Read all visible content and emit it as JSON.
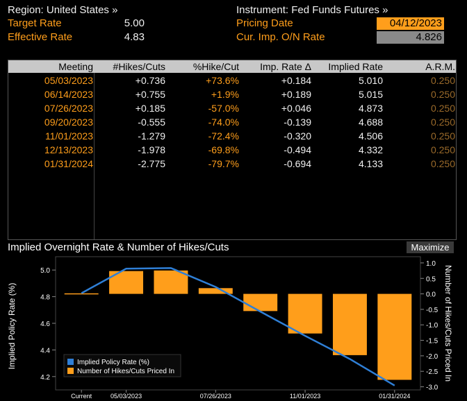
{
  "header": {
    "region_label": "Region: United States »",
    "instrument_label": "Instrument: Fed Funds Futures »",
    "target_rate_label": "Target Rate",
    "target_rate_value": "5.00",
    "effective_rate_label": "Effective Rate",
    "effective_rate_value": "4.83",
    "pricing_date_label": "Pricing Date",
    "pricing_date_value": "04/12/2023",
    "cur_imp_label": "Cur. Imp. O/N Rate",
    "cur_imp_value": "4.826"
  },
  "table": {
    "columns": [
      "Meeting",
      "#Hikes/Cuts",
      "%Hike/Cut",
      "Imp. Rate Δ",
      "Implied Rate",
      "A.R.M."
    ],
    "rows": [
      {
        "meeting": "05/03/2023",
        "hikes": "+0.736",
        "pct": "+73.6%",
        "delta": "+0.184",
        "implied": "5.010",
        "arm": "0.250"
      },
      {
        "meeting": "06/14/2023",
        "hikes": "+0.755",
        "pct": "+1.9%",
        "delta": "+0.189",
        "implied": "5.015",
        "arm": "0.250"
      },
      {
        "meeting": "07/26/2023",
        "hikes": "+0.185",
        "pct": "-57.0%",
        "delta": "+0.046",
        "implied": "4.873",
        "arm": "0.250"
      },
      {
        "meeting": "09/20/2023",
        "hikes": "-0.555",
        "pct": "-74.0%",
        "delta": "-0.139",
        "implied": "4.688",
        "arm": "0.250"
      },
      {
        "meeting": "11/01/2023",
        "hikes": "-1.279",
        "pct": "-72.4%",
        "delta": "-0.320",
        "implied": "4.506",
        "arm": "0.250"
      },
      {
        "meeting": "12/13/2023",
        "hikes": "-1.978",
        "pct": "-69.8%",
        "delta": "-0.494",
        "implied": "4.332",
        "arm": "0.250"
      },
      {
        "meeting": "01/31/2024",
        "hikes": "-2.775",
        "pct": "-79.7%",
        "delta": "-0.694",
        "implied": "4.133",
        "arm": "0.250"
      }
    ]
  },
  "chart_section": {
    "title": "Implied Overnight Rate & Number of Hikes/Cuts",
    "maximize_label": "Maximize"
  },
  "colors": {
    "accent": "#ff9e1b",
    "line": "#2f7fd6",
    "bar": "#ff9e1b"
  },
  "chart_data": {
    "type": "bar",
    "categories": [
      "Current",
      "05/03/2023",
      "06/14/2023",
      "07/26/2023",
      "09/20/2023",
      "11/01/2023",
      "12/13/2023",
      "01/31/2024"
    ],
    "x_tick_labels": [
      "Current",
      "05/03/2023",
      "07/26/2023",
      "11/01/2023",
      "01/31/2024"
    ],
    "series": [
      {
        "name": "Implied Policy Rate (%)",
        "type": "line",
        "axis": "left",
        "values": [
          4.826,
          5.01,
          5.015,
          4.873,
          4.688,
          4.506,
          4.332,
          4.133
        ]
      },
      {
        "name": "Number of Hikes/Cuts Priced In",
        "type": "bar",
        "axis": "right",
        "values": [
          0,
          0.736,
          0.755,
          0.185,
          -0.555,
          -1.279,
          -1.978,
          -2.775
        ]
      }
    ],
    "ylabel_left": "Implied Policy Rate (%)",
    "ylabel_right": "Number of Hikes/Cuts Priced In",
    "ylim_left": [
      4.1,
      5.1
    ],
    "left_ticks": [
      "5.0",
      "4.8",
      "4.6",
      "4.4",
      "4.2"
    ],
    "ylim_right": [
      -3.1,
      1.2
    ],
    "right_ticks": [
      "1.0",
      "0.5",
      "0.0",
      "-0.5",
      "-1.0",
      "-1.5",
      "-2.0",
      "-2.5",
      "-3.0"
    ],
    "legend_position": "bottom-left"
  }
}
